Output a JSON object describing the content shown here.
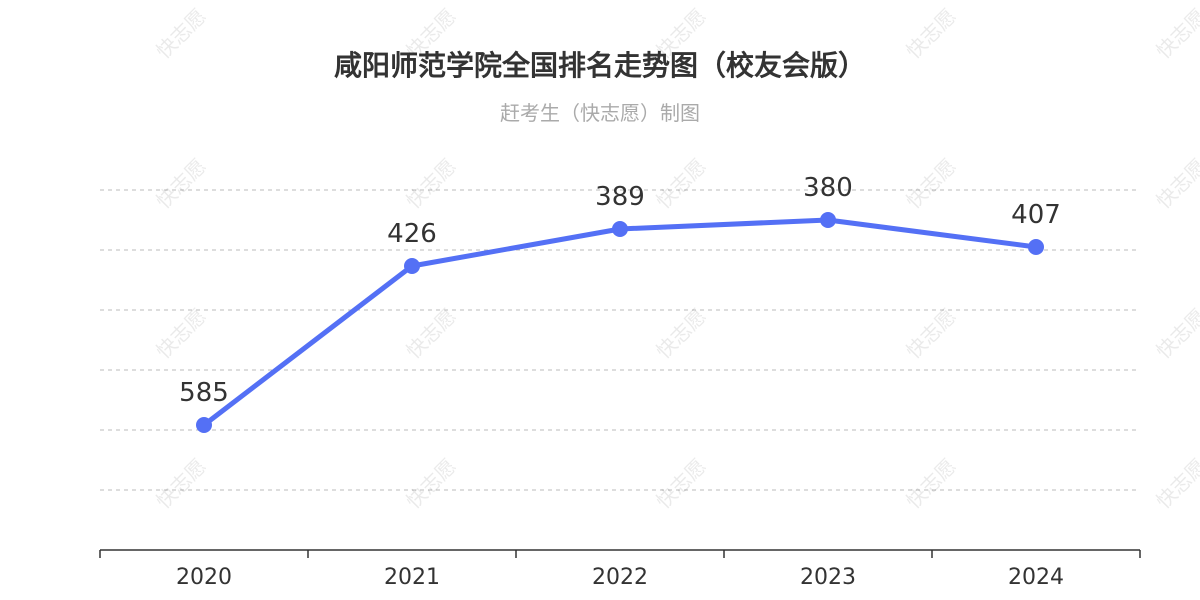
{
  "chart_data": {
    "type": "line",
    "title": "咸阳师范学院全国排名走势图（校友会版）",
    "subtitle": "赶考生（快志愿）制图",
    "categories": [
      "2020",
      "2021",
      "2022",
      "2023",
      "2024"
    ],
    "series": [
      {
        "values": [
          585,
          426,
          389,
          380,
          407
        ]
      }
    ],
    "y_axis": {
      "inverse": true,
      "visible": false,
      "range": [
        350,
        650
      ]
    },
    "grid": "horizontal-dashed",
    "line_color": "#5470f5",
    "watermark": "快志愿"
  }
}
